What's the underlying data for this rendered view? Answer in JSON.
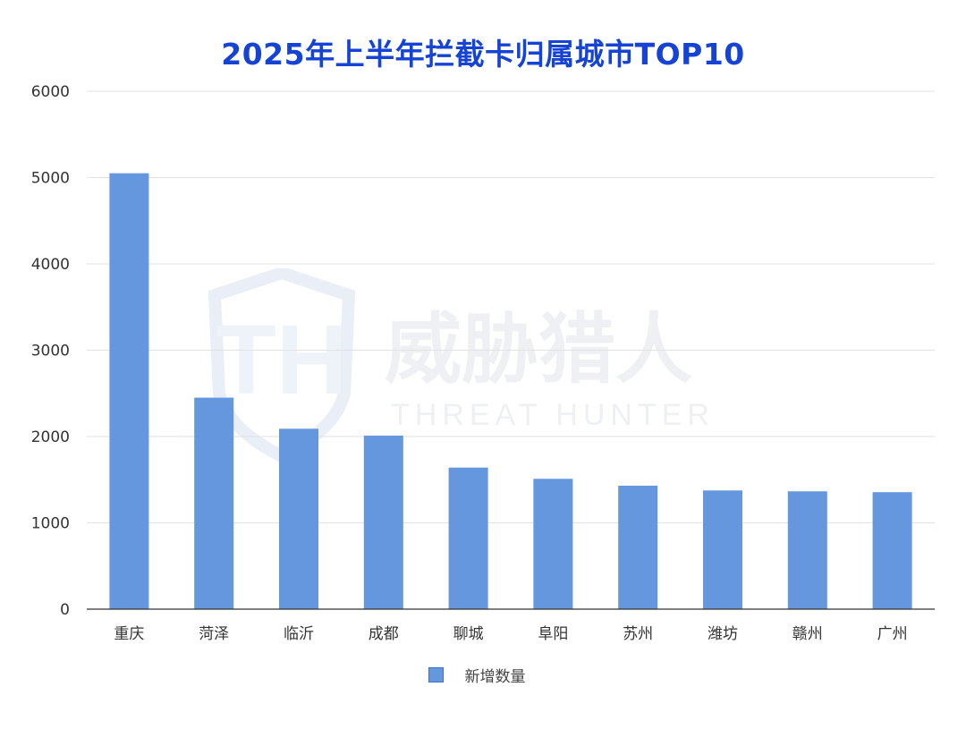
{
  "chart_data": {
    "type": "bar",
    "title": "2025年上半年拦截卡归属城市TOP10",
    "categories": [
      "重庆",
      "菏泽",
      "临沂",
      "成都",
      "聊城",
      "阜阳",
      "苏州",
      "潍坊",
      "赣州",
      "广州"
    ],
    "series": [
      {
        "name": "新增数量",
        "values": [
          5050,
          2450,
          2090,
          2010,
          1640,
          1510,
          1430,
          1375,
          1365,
          1355
        ]
      }
    ],
    "ylim": [
      0,
      6000
    ],
    "yticks": [
      0,
      1000,
      2000,
      3000,
      4000,
      5000,
      6000
    ],
    "grid": true,
    "legend_position": "bottom-center",
    "bar_color": "#6497de",
    "title_color": "#1543d6"
  },
  "watermark": {
    "logo_text": "TH",
    "name": "威胁猎人",
    "subtitle": "THREAT HUNTER"
  }
}
